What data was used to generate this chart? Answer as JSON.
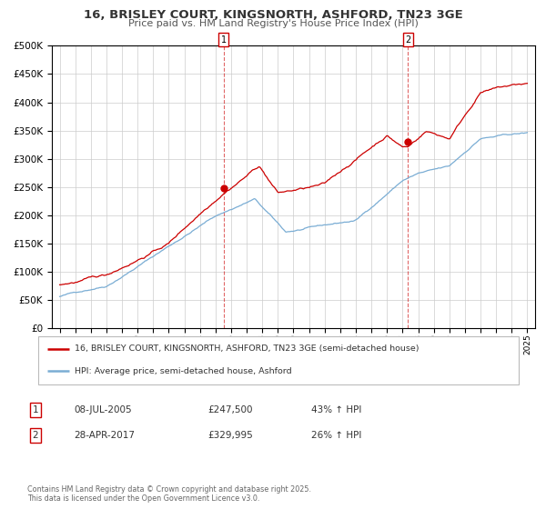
{
  "title": "16, BRISLEY COURT, KINGSNORTH, ASHFORD, TN23 3GE",
  "subtitle": "Price paid vs. HM Land Registry's House Price Index (HPI)",
  "title_fontsize": 9.5,
  "subtitle_fontsize": 8,
  "bg_color": "#ffffff",
  "grid_color": "#cccccc",
  "ylim": [
    0,
    500000
  ],
  "xlim_start": 1994.5,
  "xlim_end": 2025.5,
  "marker1_x": 2005.52,
  "marker1_y": 247500,
  "marker2_x": 2017.33,
  "marker2_y": 329995,
  "line1_color": "#cc0000",
  "line2_color": "#7aadd4",
  "vline_color": "#cc0000",
  "legend_line1": "16, BRISLEY COURT, KINGSNORTH, ASHFORD, TN23 3GE (semi-detached house)",
  "legend_line2": "HPI: Average price, semi-detached house, Ashford",
  "marker1_date": "08-JUL-2005",
  "marker1_price": "£247,500",
  "marker1_pct": "43% ↑ HPI",
  "marker2_date": "28-APR-2017",
  "marker2_price": "£329,995",
  "marker2_pct": "26% ↑ HPI",
  "footer": "Contains HM Land Registry data © Crown copyright and database right 2025.\nThis data is licensed under the Open Government Licence v3.0."
}
